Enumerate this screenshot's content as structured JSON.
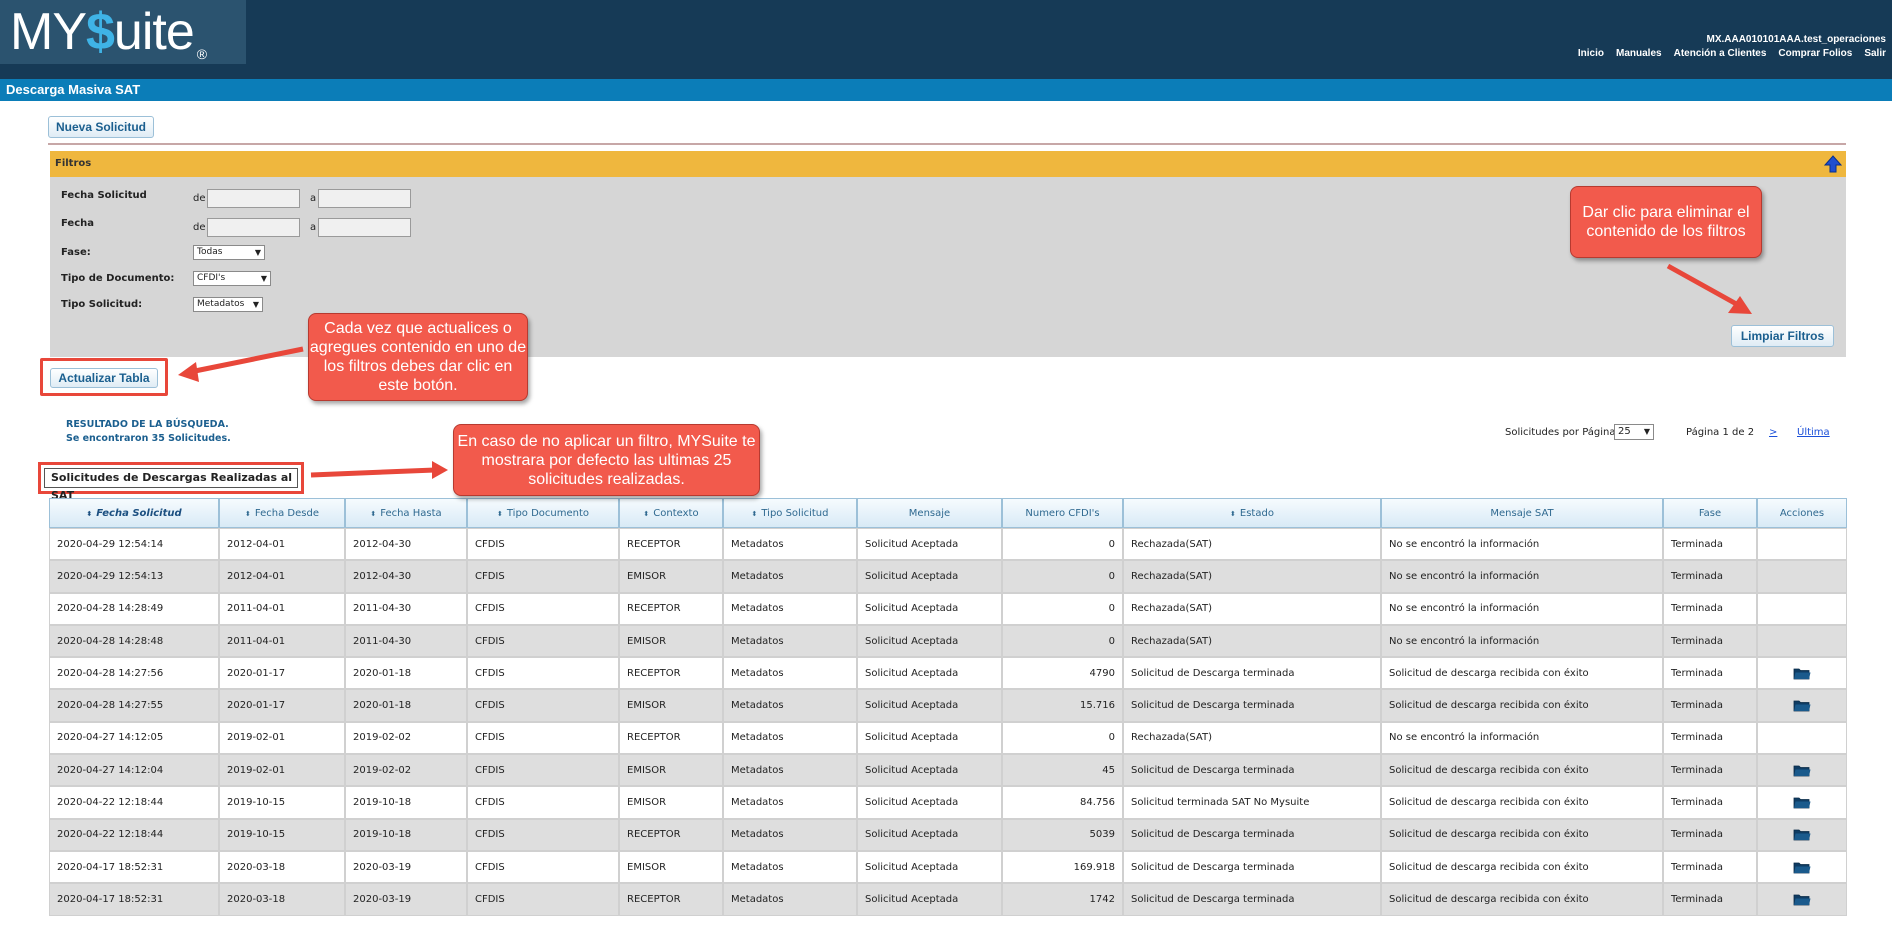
{
  "header": {
    "logo_text_a": "MY",
    "logo_text_b": "$",
    "logo_text_c": "uite",
    "logo_reg": "®",
    "user": "MX.AAA010101AAA.test_operaciones",
    "nav": [
      "Inicio",
      "Manuales",
      "Atención a Clientes",
      "Comprar Folios",
      "Salir"
    ]
  },
  "page_title": "Descarga Masiva SAT",
  "buttons": {
    "nueva": "Nueva Solicitud",
    "limpiar": "Limpiar Filtros",
    "actualizar": "Actualizar Tabla"
  },
  "filters": {
    "title": "Filtros",
    "fecha_solicitud_label": "Fecha Solicitud",
    "fecha_label": "Fecha",
    "de": "de",
    "a": "a",
    "fase_label": "Fase:",
    "fase_value": "Todas",
    "tipo_doc_label": "Tipo de Documento:",
    "tipo_doc_value": "CFDI's",
    "tipo_sol_label": "Tipo Solicitud:",
    "tipo_sol_value": "Metadatos"
  },
  "callouts": {
    "limpiar": "Dar clic para eliminar el contenido de los filtros",
    "actualizar": "Cada vez que actualices o agregues contenido en uno de los filtros debes dar clic en este botón.",
    "defecto": "En caso de no aplicar un filtro, MYSuite te mostrara por defecto las ultimas 25 solicitudes realizadas."
  },
  "results": {
    "line1": "RESULTADO DE LA BÚSQUEDA.",
    "line2": "Se encontraron 35 Solicitudes.",
    "per_page_label": "Solicitudes por Página:",
    "per_page_value": "25",
    "pagina": "Página 1 de 2",
    "next": ">",
    "last": "Última"
  },
  "table_title": "Solicitudes de Descargas Realizadas al SAT",
  "table": {
    "columns": [
      "Fecha Solicitud",
      "Fecha Desde",
      "Fecha Hasta",
      "Tipo Documento",
      "Contexto",
      "Tipo Solicitud",
      "Mensaje",
      "Numero CFDI's",
      "Estado",
      "Mensaje SAT",
      "Fase",
      "Acciones"
    ],
    "sortable": [
      true,
      true,
      true,
      true,
      true,
      true,
      false,
      false,
      true,
      false,
      false,
      false
    ],
    "rows": [
      {
        "c": [
          "2020-04-29 12:54:14",
          "2012-04-01",
          "2012-04-30",
          "CFDIS",
          "RECEPTOR",
          "Metadatos",
          "Solicitud Aceptada",
          "0",
          "Rechazada(SAT)",
          "No se encontró la información",
          "Terminada"
        ],
        "folder": false
      },
      {
        "c": [
          "2020-04-29 12:54:13",
          "2012-04-01",
          "2012-04-30",
          "CFDIS",
          "EMISOR",
          "Metadatos",
          "Solicitud Aceptada",
          "0",
          "Rechazada(SAT)",
          "No se encontró la información",
          "Terminada"
        ],
        "folder": false
      },
      {
        "c": [
          "2020-04-28 14:28:49",
          "2011-04-01",
          "2011-04-30",
          "CFDIS",
          "RECEPTOR",
          "Metadatos",
          "Solicitud Aceptada",
          "0",
          "Rechazada(SAT)",
          "No se encontró la información",
          "Terminada"
        ],
        "folder": false
      },
      {
        "c": [
          "2020-04-28 14:28:48",
          "2011-04-01",
          "2011-04-30",
          "CFDIS",
          "EMISOR",
          "Metadatos",
          "Solicitud Aceptada",
          "0",
          "Rechazada(SAT)",
          "No se encontró la información",
          "Terminada"
        ],
        "folder": false
      },
      {
        "c": [
          "2020-04-28 14:27:56",
          "2020-01-17",
          "2020-01-18",
          "CFDIS",
          "RECEPTOR",
          "Metadatos",
          "Solicitud Aceptada",
          "4790",
          "Solicitud de Descarga terminada",
          "Solicitud de descarga recibida con éxito",
          "Terminada"
        ],
        "folder": true
      },
      {
        "c": [
          "2020-04-28 14:27:55",
          "2020-01-17",
          "2020-01-18",
          "CFDIS",
          "EMISOR",
          "Metadatos",
          "Solicitud Aceptada",
          "15.716",
          "Solicitud de Descarga terminada",
          "Solicitud de descarga recibida con éxito",
          "Terminada"
        ],
        "folder": true
      },
      {
        "c": [
          "2020-04-27 14:12:05",
          "2019-02-01",
          "2019-02-02",
          "CFDIS",
          "RECEPTOR",
          "Metadatos",
          "Solicitud Aceptada",
          "0",
          "Rechazada(SAT)",
          "No se encontró la información",
          "Terminada"
        ],
        "folder": false
      },
      {
        "c": [
          "2020-04-27 14:12:04",
          "2019-02-01",
          "2019-02-02",
          "CFDIS",
          "EMISOR",
          "Metadatos",
          "Solicitud Aceptada",
          "45",
          "Solicitud de Descarga terminada",
          "Solicitud de descarga recibida con éxito",
          "Terminada"
        ],
        "folder": true
      },
      {
        "c": [
          "2020-04-22 12:18:44",
          "2019-10-15",
          "2019-10-18",
          "CFDIS",
          "EMISOR",
          "Metadatos",
          "Solicitud Aceptada",
          "84.756",
          "Solicitud terminada SAT No Mysuite",
          "Solicitud de descarga recibida con éxito",
          "Terminada"
        ],
        "folder": true
      },
      {
        "c": [
          "2020-04-22 12:18:44",
          "2019-10-15",
          "2019-10-18",
          "CFDIS",
          "RECEPTOR",
          "Metadatos",
          "Solicitud Aceptada",
          "5039",
          "Solicitud de Descarga terminada",
          "Solicitud de descarga recibida con éxito",
          "Terminada"
        ],
        "folder": true
      },
      {
        "c": [
          "2020-04-17 18:52:31",
          "2020-03-18",
          "2020-03-19",
          "CFDIS",
          "EMISOR",
          "Metadatos",
          "Solicitud Aceptada",
          "169.918",
          "Solicitud de Descarga terminada",
          "Solicitud de descarga recibida con éxito",
          "Terminada"
        ],
        "folder": true
      },
      {
        "c": [
          "2020-04-17 18:52:31",
          "2020-03-18",
          "2020-03-19",
          "CFDIS",
          "RECEPTOR",
          "Metadatos",
          "Solicitud Aceptada",
          "1742",
          "Solicitud de Descarga terminada",
          "Solicitud de descarga recibida con éxito",
          "Terminada"
        ],
        "folder": true
      }
    ]
  },
  "colors": {
    "header_bg": "#163a56",
    "title_bar": "#0b7db8",
    "filter_header": "#efb73e",
    "callout": "#f25a4c",
    "link": "#1b4fd8"
  },
  "icons": {
    "collapse": "arrow-up-icon",
    "folder": "folder-icon",
    "sort": "sort-icon"
  }
}
